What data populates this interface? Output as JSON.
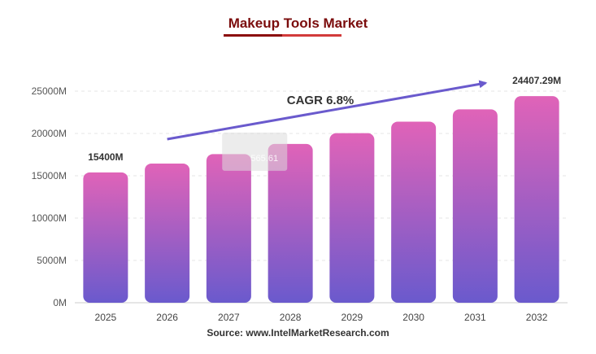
{
  "chart_data": {
    "type": "bar",
    "title": "Makeup Tools Market",
    "categories": [
      "2025",
      "2026",
      "2027",
      "2028",
      "2029",
      "2030",
      "2031",
      "2032"
    ],
    "values": [
      15400,
      16447,
      17565.61,
      18760,
      20036,
      21398,
      22853,
      24407.29
    ],
    "ylim": [
      0,
      25000
    ],
    "yticks": [
      "0M",
      "5000M",
      "10000M",
      "15000M",
      "20000M",
      "25000M"
    ],
    "ytick_values": [
      0,
      5000,
      10000,
      15000,
      20000,
      25000
    ],
    "data_labels": [
      {
        "index": 0,
        "text": "15400M"
      },
      {
        "index": 7,
        "text": "24407.29M"
      }
    ],
    "tooltip_text": "565.61",
    "annotation": "CAGR 6.8%",
    "bar_gradient": {
      "top": "#e063b8",
      "bottom": "#6a5acd"
    },
    "arrow_color": "#6a5acd",
    "grid": true,
    "legend": "none"
  },
  "source": "Source: www.IntelMarketResearch.com"
}
